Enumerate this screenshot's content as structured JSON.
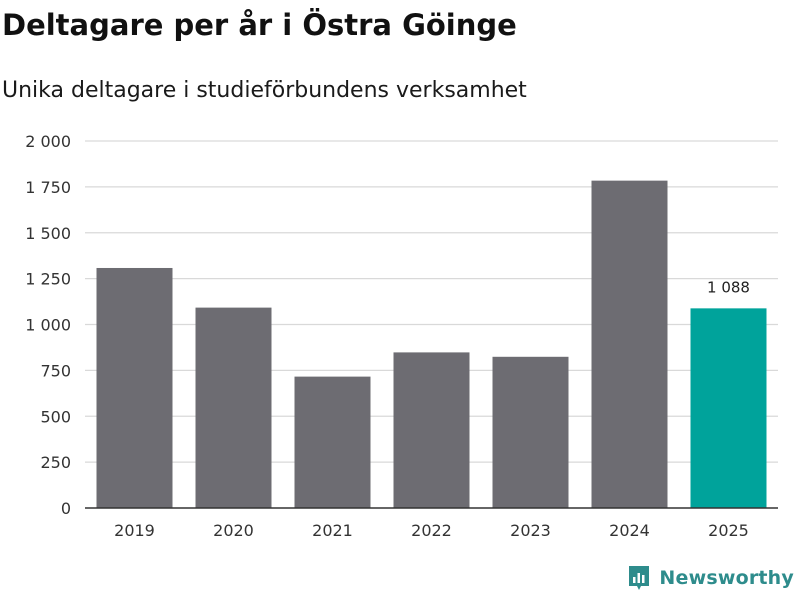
{
  "title": "Deltagare per år i Östra Göinge",
  "subtitle": "Unika deltagare i studieförbundens verksamhet",
  "brand": {
    "name": "Newsworthy",
    "color": "#2e8c8c",
    "icon": "newsworthy-logo-icon"
  },
  "colors": {
    "bar": "#6d6c72",
    "highlight": "#00a39b",
    "grid": "#d9d9d9",
    "axis": "#333333",
    "text": "#333333"
  },
  "chart_data": {
    "type": "bar",
    "title": "Deltagare per år i Östra Göinge",
    "subtitle": "Unika deltagare i studieförbundens verksamhet",
    "xlabel": "",
    "ylabel": "",
    "categories": [
      "2019",
      "2020",
      "2021",
      "2022",
      "2023",
      "2024",
      "2025"
    ],
    "values": [
      1308,
      1092,
      716,
      848,
      824,
      1784,
      1088
    ],
    "highlight_index": 6,
    "data_labels": [
      {
        "index": 6,
        "text": "1 088"
      }
    ],
    "ylim": [
      0,
      2000
    ],
    "yticks": [
      0,
      250,
      500,
      750,
      1000,
      1250,
      1500,
      1750,
      2000
    ],
    "ytick_labels": [
      "0",
      "250",
      "500",
      "750",
      "1 000",
      "1 250",
      "1 500",
      "1 750",
      "2 000"
    ],
    "grid": true,
    "legend": "none"
  }
}
